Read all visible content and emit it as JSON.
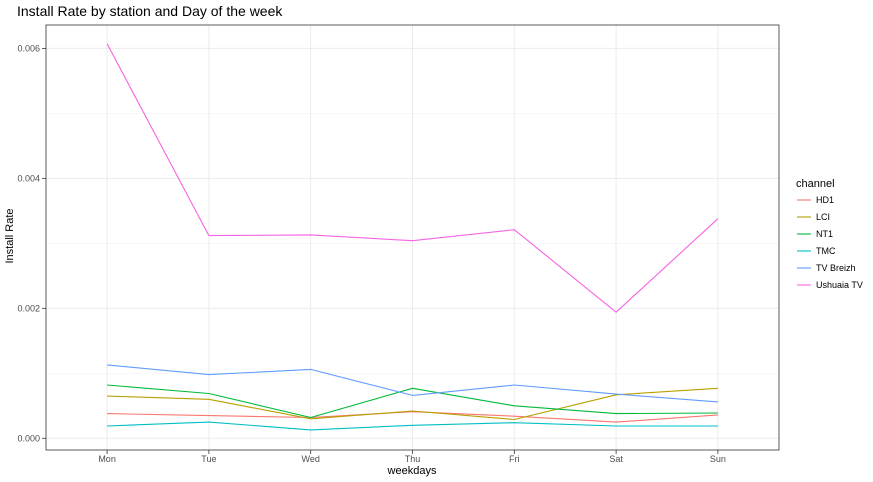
{
  "chart_data": {
    "type": "line",
    "title": "Install Rate by station and Day of the week",
    "xlabel": "weekdays",
    "ylabel": "Install Rate",
    "categories": [
      "Mon",
      "Tue",
      "Wed",
      "Thu",
      "Fri",
      "Sat",
      "Sun"
    ],
    "y_ticks": [
      0.0,
      0.002,
      0.004,
      0.006
    ],
    "y_tick_labels": [
      "0.000",
      "0.002",
      "0.004",
      "0.006"
    ],
    "ylim": [
      -0.00018,
      0.00636
    ],
    "grid": true,
    "legend": {
      "title": "channel",
      "position": "right"
    },
    "series": [
      {
        "name": "HD1",
        "color": "#F8766D",
        "values": [
          0.00038,
          0.00035,
          0.00032,
          0.00041,
          0.00034,
          0.00025,
          0.00036
        ]
      },
      {
        "name": "LCI",
        "color": "#B79F00",
        "values": [
          0.00065,
          0.0006,
          0.0003,
          0.00042,
          0.00029,
          0.00067,
          0.00077
        ]
      },
      {
        "name": "NT1",
        "color": "#00BA38",
        "values": [
          0.00082,
          0.00069,
          0.00032,
          0.00077,
          0.0005,
          0.00038,
          0.00039
        ]
      },
      {
        "name": "TMC",
        "color": "#00BFC4",
        "values": [
          0.00019,
          0.00025,
          0.00013,
          0.0002,
          0.00024,
          0.00019,
          0.00019
        ]
      },
      {
        "name": "TV Breizh",
        "color": "#619CFF",
        "values": [
          0.00113,
          0.00098,
          0.00106,
          0.00066,
          0.00082,
          0.00068,
          0.00056
        ]
      },
      {
        "name": "Ushuaia TV",
        "color": "#F564E3",
        "values": [
          0.00607,
          0.00312,
          0.00313,
          0.00304,
          0.00321,
          0.00194,
          0.00338
        ]
      }
    ]
  }
}
